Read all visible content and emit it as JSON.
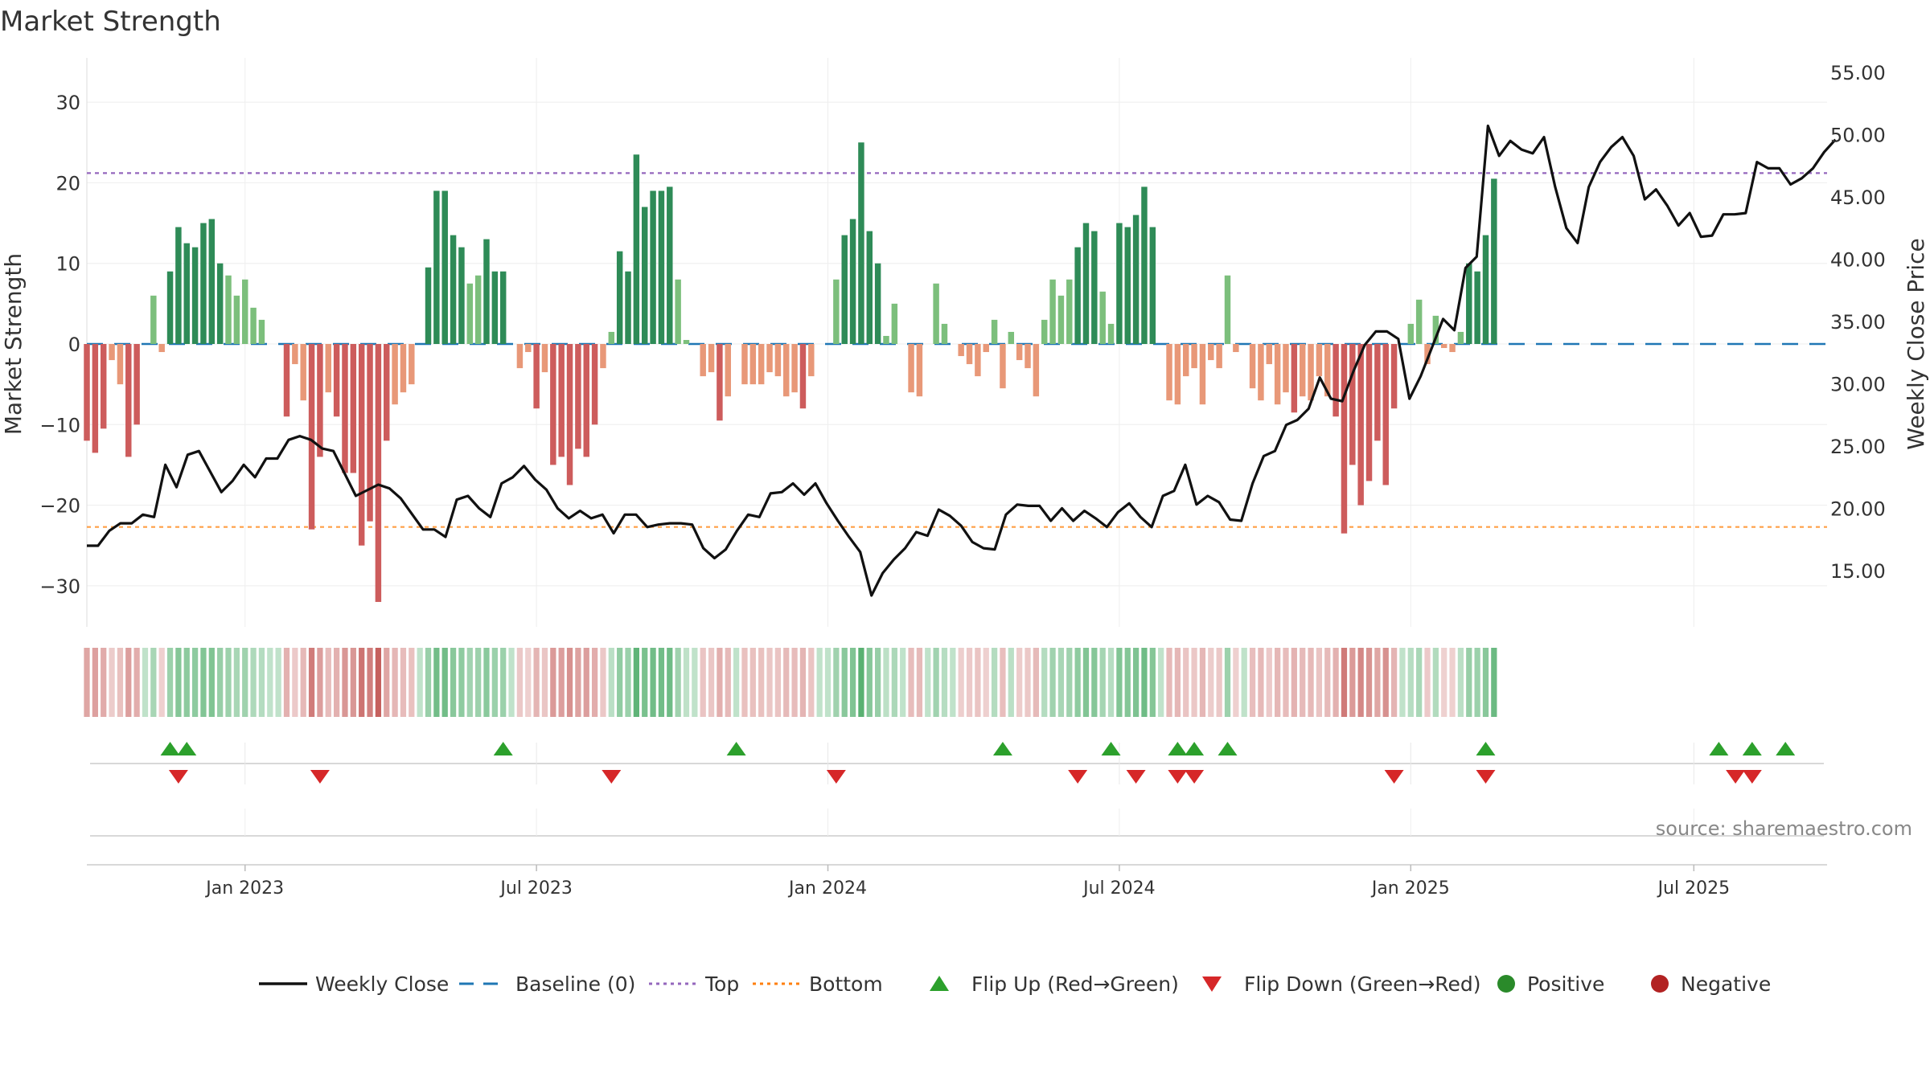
{
  "chart_data": {
    "type": "bar",
    "title": "Market Strength",
    "ylabel": "Market Strength",
    "y2label": "Weekly Close Price",
    "ylim": [
      -35,
      35
    ],
    "y2lim": [
      10,
      57
    ],
    "yticks": [
      30,
      20,
      10,
      0,
      -10,
      -20,
      -30
    ],
    "yticklabels": [
      "30",
      "20",
      "10",
      "0",
      "−10",
      "−20",
      "−30"
    ],
    "y2ticks": [
      55,
      50,
      45,
      40,
      35,
      30,
      25,
      20,
      15
    ],
    "y2ticklabels": [
      "55.00",
      "50.00",
      "45.00",
      "40.00",
      "35.00",
      "30.00",
      "25.00",
      "20.00",
      "15.00"
    ],
    "xticklabels": [
      "Jan 2023",
      "Jul 2023",
      "Jan 2024",
      "Jul 2024",
      "Jan 2025",
      "Jul 2025"
    ],
    "xtick_weeks": [
      19,
      54,
      89,
      124,
      159,
      193
    ],
    "num_weeks": 210,
    "top_line": 21.2,
    "bottom_line": -22.7,
    "baseline": 0,
    "strength": [
      -12,
      -13.5,
      -10.5,
      -2,
      -5,
      -14,
      -10,
      0,
      6,
      -1,
      9,
      14.5,
      12.5,
      12,
      15,
      15.5,
      10,
      8.5,
      6,
      8,
      4.5,
      3,
      0,
      0,
      -9,
      -2.5,
      -7,
      -23,
      -14,
      -6,
      -9,
      -16,
      -16,
      -25,
      -22,
      -32,
      -12,
      -7.5,
      -6,
      -5,
      0,
      9.5,
      19,
      19,
      13.5,
      12,
      7.5,
      8.5,
      13,
      9,
      9,
      0,
      -3,
      -1,
      -8,
      -3.5,
      -15,
      -14,
      -17.5,
      -13,
      -14,
      -10,
      -3,
      1.5,
      11.5,
      9,
      23.5,
      17,
      19,
      19,
      19.5,
      8,
      0.5,
      0,
      -4,
      -3.5,
      -9.5,
      -6.5,
      0,
      -5,
      -5,
      -5,
      -3.5,
      -4,
      -6.5,
      -6,
      -8,
      -4,
      0,
      0,
      8,
      13.5,
      15.5,
      25,
      14,
      10,
      1,
      5,
      0,
      -6,
      -6.5,
      0,
      7.5,
      2.5,
      0,
      -1.5,
      -2.5,
      -4,
      -1,
      3,
      -5.5,
      1.5,
      -2,
      -3,
      -6.5,
      3,
      8,
      6,
      8,
      12,
      15,
      14,
      6.5,
      2.5,
      15,
      14.5,
      16,
      19.5,
      14.5,
      0,
      -7,
      -7.5,
      -4,
      -3,
      -7.5,
      -2,
      -3,
      8.5,
      -1,
      0,
      -5.5,
      -7,
      -2.5,
      -7.5,
      -6,
      -8.5,
      -6.5,
      -7,
      -4,
      -6.5,
      -9,
      -23.5,
      -15,
      -20,
      -17,
      -12,
      -17.5,
      -8,
      0,
      2.5,
      5.5,
      -2.5,
      3.5,
      -0.5,
      -1,
      1.5,
      10,
      9,
      13.5,
      20.5
    ],
    "close_anchors": [
      [
        0,
        17
      ],
      [
        1,
        17
      ],
      [
        2,
        18.2
      ],
      [
        3,
        18.8
      ],
      [
        4,
        18.8
      ],
      [
        5,
        19.5
      ],
      [
        6,
        19.3
      ],
      [
        7,
        23.5
      ],
      [
        8,
        21.7
      ],
      [
        9,
        24.3
      ],
      [
        10,
        24.6
      ],
      [
        12,
        21.3
      ],
      [
        13,
        22.2
      ],
      [
        14,
        23.5
      ],
      [
        15,
        22.5
      ],
      [
        16,
        24
      ],
      [
        17,
        24
      ],
      [
        18,
        25.5
      ],
      [
        19,
        25.8
      ],
      [
        20,
        25.5
      ],
      [
        21,
        24.8
      ],
      [
        22,
        24.6
      ],
      [
        24,
        21
      ],
      [
        26,
        21.9
      ],
      [
        27,
        21.6
      ],
      [
        28,
        20.8
      ],
      [
        30,
        18.3
      ],
      [
        31,
        18.3
      ],
      [
        32,
        17.7
      ],
      [
        33,
        20.7
      ],
      [
        34,
        21
      ],
      [
        35,
        20
      ],
      [
        36,
        19.3
      ],
      [
        37,
        22
      ],
      [
        38,
        22.5
      ],
      [
        39,
        23.4
      ],
      [
        40,
        22.3
      ],
      [
        41,
        21.5
      ],
      [
        42,
        20
      ],
      [
        43,
        19.2
      ],
      [
        44,
        19.8
      ],
      [
        45,
        19.2
      ],
      [
        46,
        19.5
      ],
      [
        47,
        18
      ],
      [
        48,
        19.5
      ],
      [
        49,
        19.5
      ],
      [
        50,
        18.5
      ],
      [
        51,
        18.7
      ],
      [
        52,
        18.8
      ],
      [
        53,
        18.8
      ],
      [
        54,
        18.7
      ],
      [
        55,
        16.8
      ],
      [
        56,
        16
      ],
      [
        57,
        16.7
      ],
      [
        58,
        18.2
      ],
      [
        59,
        19.5
      ],
      [
        60,
        19.3
      ],
      [
        61,
        21.2
      ],
      [
        62,
        21.3
      ],
      [
        63,
        22
      ],
      [
        64,
        21.1
      ],
      [
        65,
        22
      ],
      [
        66,
        20.4
      ],
      [
        67,
        19
      ],
      [
        68,
        17.7
      ],
      [
        69,
        16.5
      ],
      [
        70,
        13
      ],
      [
        71,
        14.8
      ],
      [
        72,
        15.9
      ],
      [
        73,
        16.8
      ],
      [
        74,
        18.1
      ],
      [
        75,
        17.8
      ],
      [
        76,
        19.9
      ],
      [
        77,
        19.4
      ],
      [
        78,
        18.6
      ],
      [
        79,
        17.3
      ],
      [
        80,
        16.8
      ],
      [
        81,
        16.7
      ],
      [
        82,
        19.5
      ],
      [
        83,
        20.3
      ],
      [
        84,
        20.2
      ],
      [
        85,
        20.2
      ],
      [
        86,
        19
      ],
      [
        87,
        20
      ],
      [
        88,
        19
      ],
      [
        89,
        19.8
      ],
      [
        90,
        19.2
      ],
      [
        91,
        18.5
      ],
      [
        92,
        19.7
      ],
      [
        93,
        20.4
      ],
      [
        94,
        19.3
      ],
      [
        95,
        18.5
      ],
      [
        96,
        21
      ],
      [
        97,
        21.4
      ],
      [
        98,
        23.5
      ],
      [
        99,
        20.3
      ],
      [
        100,
        21
      ],
      [
        101,
        20.5
      ],
      [
        102,
        19.1
      ],
      [
        103,
        19
      ],
      [
        104,
        22
      ],
      [
        105,
        24.2
      ],
      [
        106,
        24.6
      ],
      [
        107,
        26.7
      ],
      [
        108,
        27.1
      ],
      [
        109,
        28
      ],
      [
        110,
        30.5
      ],
      [
        111,
        28.8
      ],
      [
        112,
        28.6
      ],
      [
        113,
        31
      ],
      [
        114,
        33.1
      ],
      [
        115,
        34.2
      ],
      [
        116,
        34.2
      ],
      [
        117,
        33.6
      ],
      [
        118,
        28.8
      ],
      [
        119,
        30.6
      ],
      [
        120,
        32.9
      ],
      [
        121,
        35.2
      ],
      [
        122,
        34.3
      ],
      [
        123,
        39.3
      ],
      [
        124,
        40.2
      ],
      [
        125,
        50.7
      ],
      [
        126,
        48.3
      ],
      [
        127,
        49.5
      ],
      [
        128,
        48.8
      ],
      [
        129,
        48.5
      ],
      [
        130,
        49.8
      ],
      [
        131,
        45.8
      ],
      [
        132,
        42.5
      ],
      [
        133,
        41.3
      ],
      [
        134,
        45.8
      ],
      [
        135,
        47.8
      ],
      [
        136,
        49
      ],
      [
        137,
        49.8
      ],
      [
        138,
        48.3
      ],
      [
        139,
        44.8
      ],
      [
        140,
        45.6
      ],
      [
        141,
        44.3
      ],
      [
        142,
        42.7
      ],
      [
        143,
        43.7
      ],
      [
        144,
        41.8
      ],
      [
        145,
        41.9
      ],
      [
        146,
        43.6
      ],
      [
        147,
        43.6
      ],
      [
        148,
        43.7
      ],
      [
        149,
        47.8
      ],
      [
        150,
        47.3
      ],
      [
        151,
        47.3
      ],
      [
        152,
        46
      ],
      [
        153,
        46.5
      ],
      [
        154,
        47.3
      ],
      [
        155,
        48.6
      ],
      [
        156,
        49.6
      ]
    ],
    "close_span_weeks": [
      0,
      210
    ],
    "flip_up_weeks": [
      10,
      12,
      50,
      78,
      110,
      123,
      131,
      133,
      137,
      168,
      196,
      200,
      204
    ],
    "flip_down_weeks": [
      11,
      28,
      63,
      90,
      119,
      126,
      131,
      133,
      157,
      168,
      198,
      200
    ],
    "legend_position": "bottom-center"
  },
  "legend": [
    {
      "label": "Weekly Close",
      "kind": "line",
      "color": "#111111"
    },
    {
      "label": "Baseline (0)",
      "kind": "dash",
      "color": "#1f77b4"
    },
    {
      "label": "Top",
      "kind": "dot",
      "color": "#9467bd"
    },
    {
      "label": "Bottom",
      "kind": "dot",
      "color": "#ff7f0e"
    },
    {
      "label": "Flip Up (Red→Green)",
      "kind": "tri-up",
      "color": "#2ca02c"
    },
    {
      "label": "Flip Down (Green→Red)",
      "kind": "tri-down",
      "color": "#d62728"
    },
    {
      "label": "Positive",
      "kind": "circle",
      "color": "#2a8a2a"
    },
    {
      "label": "Negative",
      "kind": "circle",
      "color": "#b22222"
    }
  ],
  "colors": {
    "pos_strong": "#2e8b57",
    "pos_weak": "#7cbf7c",
    "neg_strong": "#cd5c5c",
    "neg_weak": "#e89878",
    "grid": "#eeeeee"
  },
  "source": "source: sharemaestro.com"
}
